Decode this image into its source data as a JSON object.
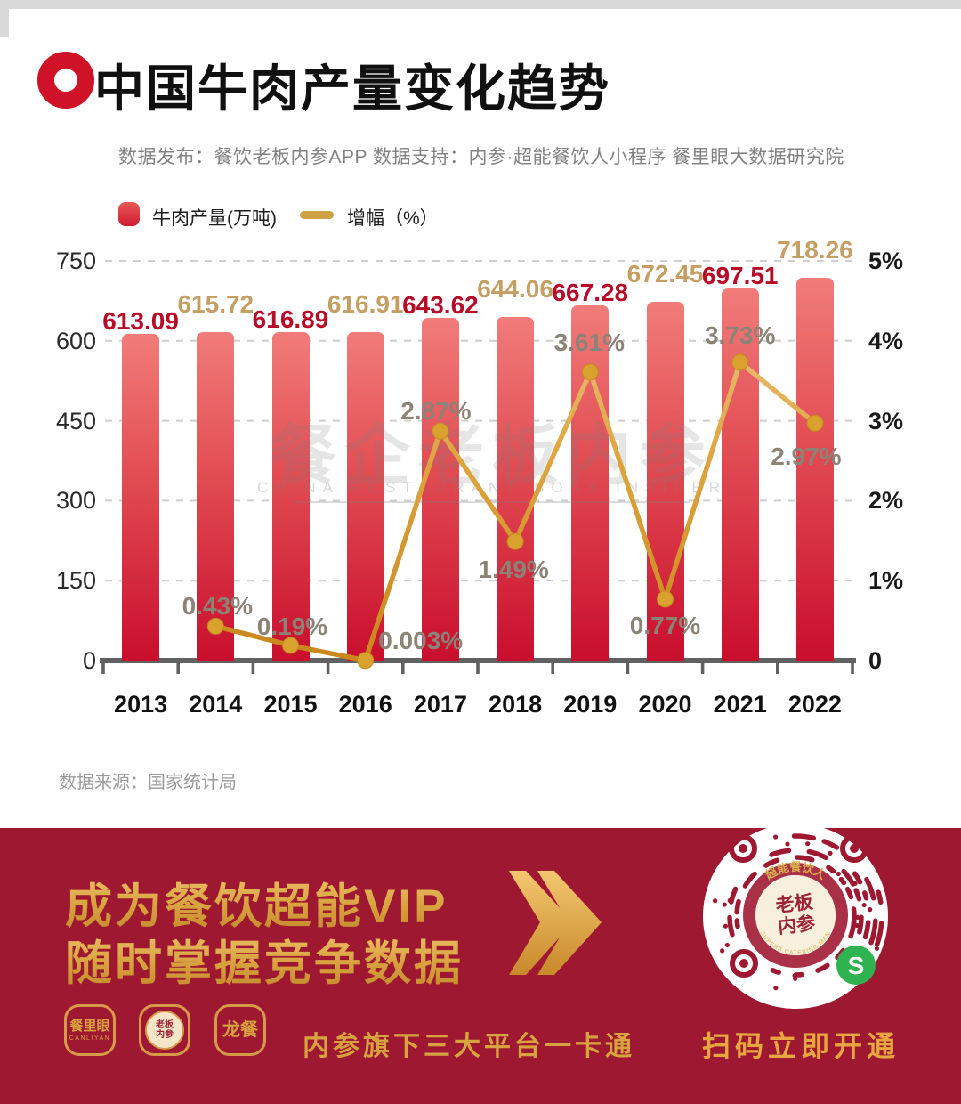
{
  "header": {
    "title": "中国牛肉产量变化趋势",
    "subtitle": "数据发布：餐饮老板内参APP  数据支持：内参·超能餐饮人小程序  餐里眼大数据研究院"
  },
  "legend": {
    "bar_label": "牛肉产量(万吨)",
    "line_label": "增幅（%）"
  },
  "chart_data": {
    "type": "bar",
    "subtype": "bar+line combo",
    "categories": [
      "2013",
      "2014",
      "2015",
      "2016",
      "2017",
      "2018",
      "2019",
      "2020",
      "2021",
      "2022"
    ],
    "series": [
      {
        "name": "牛肉产量(万吨)",
        "type": "bar",
        "axis": "left",
        "values": [
          613.09,
          615.72,
          616.89,
          616.91,
          643.62,
          644.06,
          667.28,
          672.45,
          697.51,
          718.26
        ],
        "value_labels": [
          "613.09",
          "615.72",
          "616.89",
          "616.91",
          "643.62",
          "644.06",
          "667.28",
          "672.45",
          "697.51",
          "718.26"
        ]
      },
      {
        "name": "增幅（%）",
        "type": "line",
        "axis": "right",
        "values": [
          null,
          0.43,
          0.19,
          0.003,
          2.87,
          1.49,
          3.61,
          0.77,
          3.73,
          2.97
        ],
        "value_labels": [
          "",
          "0.43%",
          "0.19%",
          "0.003%",
          "2.87%",
          "1.49%",
          "3.61%",
          "0.77%",
          "3.73%",
          "2.97%"
        ]
      }
    ],
    "left_axis": {
      "ticks": [
        "0",
        "150",
        "300",
        "450",
        "600",
        "750"
      ],
      "min": 0,
      "max": 750
    },
    "right_axis": {
      "ticks": [
        "0",
        "1%",
        "2%",
        "3%",
        "4%",
        "5%"
      ],
      "min": 0,
      "max": 5
    },
    "grid": "dashed horizontal",
    "legend_position": "top-left"
  },
  "watermark": {
    "text": "餐企老板内参",
    "subtext": "CHINA RESTAURANT BOSS INSIDER"
  },
  "source_note": "数据来源：国家统计局",
  "banner": {
    "headline_line1": "成为餐饮超能VIP",
    "headline_line2": "随时掌握竞争数据",
    "platforms_caption": "内参旗下三大平台一卡通",
    "scan_caption": "扫码立即开通",
    "logos": [
      {
        "label": "餐里眼",
        "sub": "CANLIYAN"
      },
      {
        "label": "老板内参",
        "center_line1": "老板",
        "center_line2": "内参"
      },
      {
        "label": "龙餐"
      }
    ],
    "qr_seal": {
      "arc_top": "超能餐饮人",
      "center_line1": "老板",
      "center_line2": "内参",
      "arc_bottom": "SUPERB CATERING MAN"
    }
  },
  "colors": {
    "accent_red": "#cf1228",
    "bar_top": "#f17c79",
    "bar_bottom": "#c90e2d",
    "value_label_red": "#b70b28",
    "value_label_gold": "#c49e63",
    "line_gold": "#dda43e",
    "pct_label_gray": "#8a8376",
    "banner_bg": "#9d1830",
    "banner_gold": "#d8a23f",
    "wechat_green": "#2fb350"
  }
}
